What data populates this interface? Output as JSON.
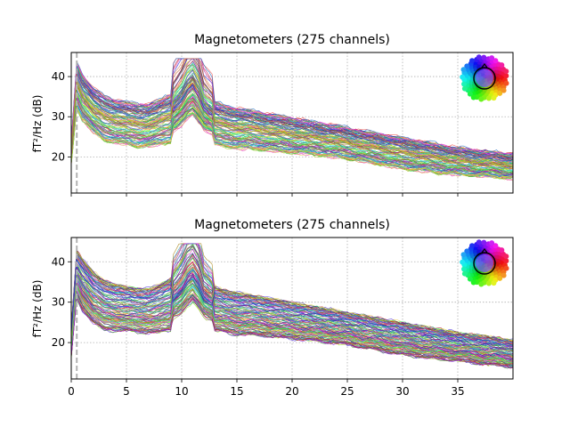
{
  "chart_data": [
    {
      "type": "line",
      "title": "Magnetometers (275 channels)",
      "xlabel": "",
      "ylabel": "fT²/Hz (dB)",
      "xlim": [
        0,
        40
      ],
      "ylim": [
        11,
        46
      ],
      "xticks": [
        0,
        5,
        10,
        15,
        20,
        25,
        30,
        35
      ],
      "xtick_labels_visible": false,
      "yticks": [
        20,
        30,
        40
      ],
      "grid": true,
      "legend": "none",
      "marker_line_x": 0.5,
      "channel_count": 275,
      "series_summary": {
        "x": [
          0,
          0.5,
          1,
          2,
          3,
          4,
          5,
          6,
          7,
          8,
          9,
          10,
          10.5,
          11,
          11.5,
          12,
          13,
          14,
          15,
          16,
          18,
          20,
          22,
          25,
          28,
          30,
          33,
          35,
          38,
          40
        ],
        "median_db": [
          21,
          38,
          36,
          33,
          31.5,
          30.5,
          30,
          29.5,
          29.5,
          30,
          31.5,
          36,
          40,
          42.5,
          38,
          33,
          30.5,
          29.5,
          28.5,
          28,
          27,
          26.5,
          25.5,
          24,
          22.5,
          21.5,
          20,
          19,
          18,
          17.5
        ],
        "min_db": [
          18,
          32,
          29,
          26,
          24,
          23.5,
          23,
          22.5,
          22.5,
          23,
          23.5,
          24,
          24.5,
          25,
          24.5,
          24,
          23,
          22.5,
          22,
          22,
          21.5,
          21,
          20.5,
          19.5,
          18,
          17,
          16,
          15.5,
          15,
          14.5
        ],
        "max_db": [
          24,
          44,
          41,
          37.5,
          35.5,
          34.5,
          34,
          33.5,
          33.5,
          34.5,
          36,
          40,
          43,
          44.5,
          42,
          37,
          34,
          33,
          32.5,
          32,
          31,
          30,
          29,
          27.5,
          26,
          25,
          23.5,
          22.5,
          21.5,
          21
        ]
      },
      "sensor_inset": {
        "position": "top-right",
        "icon": "sensor-layout-head-icon"
      }
    },
    {
      "type": "line",
      "title": "Magnetometers (275 channels)",
      "xlabel": "",
      "ylabel": "fT²/Hz (dB)",
      "xlim": [
        0,
        40
      ],
      "ylim": [
        11,
        46
      ],
      "xticks": [
        0,
        5,
        10,
        15,
        20,
        25,
        30,
        35
      ],
      "xtick_labels": [
        "0",
        "5",
        "10",
        "15",
        "20",
        "25",
        "30",
        "35"
      ],
      "yticks": [
        20,
        30,
        40
      ],
      "grid": true,
      "legend": "none",
      "marker_line_x": 0.5,
      "channel_count": 275,
      "series_summary": {
        "x": [
          0,
          0.5,
          1,
          2,
          3,
          4,
          5,
          6,
          7,
          8,
          9,
          10,
          10.5,
          11,
          11.5,
          12,
          13,
          14,
          15,
          16,
          18,
          20,
          22,
          25,
          28,
          30,
          33,
          35,
          38,
          40
        ],
        "median_db": [
          20,
          38,
          36,
          33,
          31.5,
          30.5,
          30,
          29.5,
          29.5,
          30,
          31.5,
          36,
          40,
          42.5,
          38,
          33,
          30.5,
          29.5,
          28.5,
          28,
          27,
          26.5,
          25.5,
          24,
          22.5,
          21.5,
          20,
          19,
          18,
          17
        ],
        "min_db": [
          16,
          31,
          28,
          25,
          23,
          23,
          23,
          22.5,
          22.5,
          22.5,
          23,
          23.5,
          24,
          24.5,
          24,
          23.5,
          23,
          22.5,
          22,
          22,
          21.5,
          21,
          20.5,
          19.5,
          18,
          17,
          16,
          15.5,
          14.5,
          14
        ],
        "max_db": [
          24,
          43,
          41,
          37.5,
          35.5,
          34.5,
          34,
          33.5,
          33.5,
          34.5,
          36,
          40,
          43,
          44.5,
          42,
          37,
          34,
          33,
          32.5,
          32,
          31,
          30,
          29,
          27.5,
          26,
          25,
          23.5,
          22.5,
          21.5,
          20.5
        ]
      },
      "sensor_inset": {
        "position": "top-right",
        "icon": "sensor-layout-head-icon"
      }
    }
  ],
  "colors": {
    "grid": "#b0b0b0",
    "marker_line": "#b3b3b3",
    "axes": "#000000"
  }
}
